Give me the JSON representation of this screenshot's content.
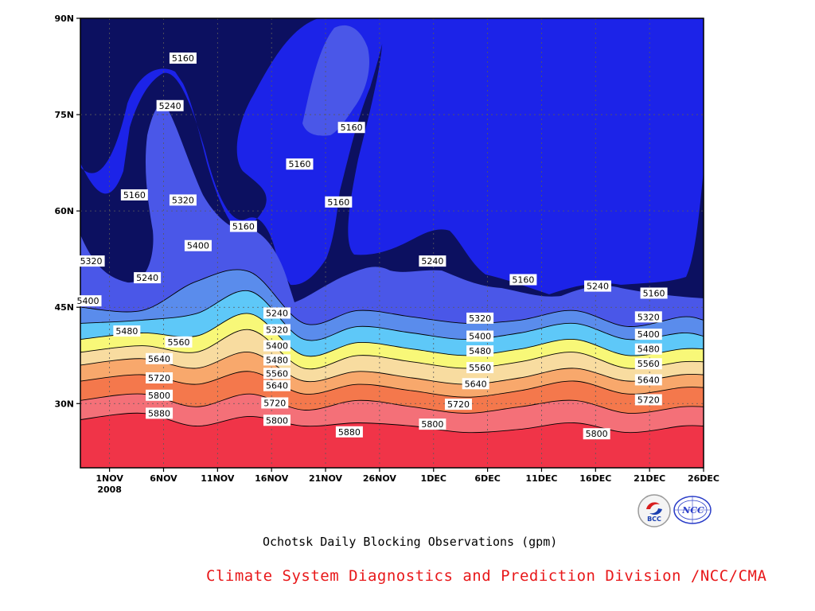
{
  "chart_data": {
    "type": "contour",
    "title": "Ochotsk Daily Blocking Observations (gpm)",
    "credit": "Climate System Diagnostics and Prediction Division /NCC/CMA",
    "x_ticks": [
      "1NOV",
      "6NOV",
      "11NOV",
      "16NOV",
      "21NOV",
      "26NOV",
      "1DEC",
      "6DEC",
      "11DEC",
      "16DEC",
      "21DEC",
      "26DEC"
    ],
    "x_tick_days": [
      1,
      6,
      11,
      16,
      21,
      26,
      31,
      36,
      41,
      46,
      51,
      56
    ],
    "x_year_label": "2008",
    "xlim_days": [
      -1.7,
      56
    ],
    "y_ticks": [
      "30N",
      "45N",
      "60N",
      "75N",
      "90N"
    ],
    "y_tick_values": [
      30,
      45,
      60,
      75,
      90
    ],
    "ylim": [
      20,
      90
    ],
    "grid": true,
    "contour_interval": 80,
    "levels": [
      5160,
      5240,
      5320,
      5400,
      5480,
      5560,
      5640,
      5720,
      5800,
      5880
    ],
    "fill_colors": [
      "#0c1060",
      "#1c23e8",
      "#4a57e8",
      "#5a8cec",
      "#5ec8f8",
      "#f8f878",
      "#f8dca0",
      "#f8a86c",
      "#f4784c",
      "#f47078",
      "#f03448"
    ],
    "isoline_latitudes_n": [
      {
        "level": 5880,
        "x_days": [
          -1.7,
          4,
          9,
          14,
          19,
          24,
          29,
          34,
          39,
          44,
          49,
          54,
          56
        ],
        "lat": [
          27.5,
          28.5,
          26.5,
          28.0,
          26.5,
          27.0,
          26.5,
          25.5,
          26.0,
          27.0,
          25.5,
          26.5,
          26.5
        ]
      },
      {
        "level": 5800,
        "x_days": [
          -1.7,
          4,
          9,
          14,
          19,
          24,
          29,
          34,
          39,
          44,
          49,
          54,
          56
        ],
        "lat": [
          30.5,
          31.5,
          29.5,
          31.5,
          29.0,
          30.5,
          29.5,
          28.5,
          29.5,
          30.5,
          28.5,
          29.5,
          29.5
        ]
      },
      {
        "level": 5720,
        "x_days": [
          -1.7,
          4,
          9,
          14,
          19,
          24,
          29,
          34,
          39,
          44,
          49,
          54,
          56
        ],
        "lat": [
          33.5,
          34.5,
          33.0,
          35.0,
          31.5,
          33.0,
          32.0,
          31.0,
          32.0,
          33.5,
          31.5,
          32.5,
          32.5
        ]
      },
      {
        "level": 5640,
        "x_days": [
          -1.7,
          4,
          9,
          14,
          19,
          24,
          29,
          34,
          39,
          44,
          49,
          54,
          56
        ],
        "lat": [
          36.0,
          37.0,
          35.5,
          38.0,
          33.5,
          35.0,
          34.0,
          33.0,
          34.0,
          35.5,
          33.5,
          34.5,
          34.5
        ]
      },
      {
        "level": 5560,
        "x_days": [
          -1.7,
          4,
          9,
          14,
          19,
          24,
          29,
          34,
          39,
          44,
          49,
          54,
          56
        ],
        "lat": [
          38.0,
          39.0,
          38.0,
          41.5,
          35.5,
          37.5,
          36.5,
          35.5,
          36.5,
          38.0,
          35.5,
          36.5,
          36.5
        ]
      },
      {
        "level": 5480,
        "x_days": [
          -1.7,
          4,
          9,
          14,
          19,
          24,
          29,
          34,
          39,
          44,
          49,
          54,
          56
        ],
        "lat": [
          40.0,
          41.0,
          40.5,
          44.0,
          37.5,
          39.5,
          38.5,
          37.5,
          38.5,
          40.0,
          37.5,
          38.5,
          38.5
        ]
      },
      {
        "level": 5400,
        "x_days": [
          -1.7,
          4,
          9,
          14,
          19,
          24,
          29,
          34,
          39,
          44,
          49,
          54,
          56
        ],
        "lat": [
          42.5,
          43.0,
          44.0,
          47.5,
          40.0,
          42.0,
          41.0,
          40.0,
          41.0,
          42.5,
          40.0,
          41.0,
          40.5
        ]
      },
      {
        "level": 5320,
        "x_days": [
          -1.7,
          4,
          9,
          14,
          19,
          24,
          29,
          34,
          39,
          44,
          49,
          54,
          56
        ],
        "lat": [
          45.0,
          44.5,
          49.0,
          50.5,
          42.5,
          44.5,
          43.5,
          42.5,
          43.0,
          44.5,
          42.0,
          43.5,
          43.0
        ]
      }
    ],
    "contour_labels": [
      {
        "text": "5160",
        "x_day": 3.3,
        "lat": 62.5
      },
      {
        "text": "5160",
        "x_day": 7.8,
        "lat": 83.8
      },
      {
        "text": "5160",
        "x_day": 23.4,
        "lat": 73.0
      },
      {
        "text": "5160",
        "x_day": 18.6,
        "lat": 67.3
      },
      {
        "text": "5160",
        "x_day": 13.4,
        "lat": 57.6
      },
      {
        "text": "5160",
        "x_day": 22.2,
        "lat": 61.4
      },
      {
        "text": "5160",
        "x_day": 39.3,
        "lat": 49.3
      },
      {
        "text": "5160",
        "x_day": 51.4,
        "lat": 47.2
      },
      {
        "text": "5240",
        "x_day": 6.6,
        "lat": 76.4
      },
      {
        "text": "5240",
        "x_day": 4.5,
        "lat": 49.6
      },
      {
        "text": "5240",
        "x_day": 16.5,
        "lat": 44.1
      },
      {
        "text": "5240",
        "x_day": 30.9,
        "lat": 52.2
      },
      {
        "text": "5240",
        "x_day": 46.2,
        "lat": 48.3
      },
      {
        "text": "5320",
        "x_day": -0.7,
        "lat": 52.2
      },
      {
        "text": "5320",
        "x_day": 7.8,
        "lat": 61.7
      },
      {
        "text": "5320",
        "x_day": 16.5,
        "lat": 41.5
      },
      {
        "text": "5320",
        "x_day": 35.3,
        "lat": 43.3
      },
      {
        "text": "5320",
        "x_day": 50.9,
        "lat": 43.5
      },
      {
        "text": "5400",
        "x_day": -1.0,
        "lat": 46.0
      },
      {
        "text": "5400",
        "x_day": 9.2,
        "lat": 54.6
      },
      {
        "text": "5400",
        "x_day": 16.5,
        "lat": 39.0
      },
      {
        "text": "5400",
        "x_day": 35.3,
        "lat": 40.5
      },
      {
        "text": "5400",
        "x_day": 50.9,
        "lat": 40.8
      },
      {
        "text": "5480",
        "x_day": 2.6,
        "lat": 41.3
      },
      {
        "text": "5480",
        "x_day": 16.5,
        "lat": 36.8
      },
      {
        "text": "5480",
        "x_day": 35.3,
        "lat": 38.2
      },
      {
        "text": "5480",
        "x_day": 50.9,
        "lat": 38.5
      },
      {
        "text": "5560",
        "x_day": 7.4,
        "lat": 39.6
      },
      {
        "text": "5560",
        "x_day": 16.5,
        "lat": 34.7
      },
      {
        "text": "5560",
        "x_day": 35.3,
        "lat": 35.6
      },
      {
        "text": "5560",
        "x_day": 50.9,
        "lat": 36.2
      },
      {
        "text": "5640",
        "x_day": 5.6,
        "lat": 37.0
      },
      {
        "text": "5640",
        "x_day": 16.5,
        "lat": 32.8
      },
      {
        "text": "5640",
        "x_day": 34.9,
        "lat": 33.1
      },
      {
        "text": "5640",
        "x_day": 50.9,
        "lat": 33.7
      },
      {
        "text": "5720",
        "x_day": 5.6,
        "lat": 34.0
      },
      {
        "text": "5720",
        "x_day": 16.3,
        "lat": 30.1
      },
      {
        "text": "5720",
        "x_day": 33.3,
        "lat": 29.9
      },
      {
        "text": "5720",
        "x_day": 50.9,
        "lat": 30.6
      },
      {
        "text": "5800",
        "x_day": 5.6,
        "lat": 31.3
      },
      {
        "text": "5800",
        "x_day": 16.5,
        "lat": 27.4
      },
      {
        "text": "5800",
        "x_day": 30.9,
        "lat": 26.8
      },
      {
        "text": "5800",
        "x_day": 46.1,
        "lat": 25.3
      },
      {
        "text": "5880",
        "x_day": 5.6,
        "lat": 28.5
      },
      {
        "text": "5880",
        "x_day": 23.2,
        "lat": 25.6
      }
    ]
  },
  "logos": {
    "left_text": "BCC",
    "right_text": "NCC"
  }
}
